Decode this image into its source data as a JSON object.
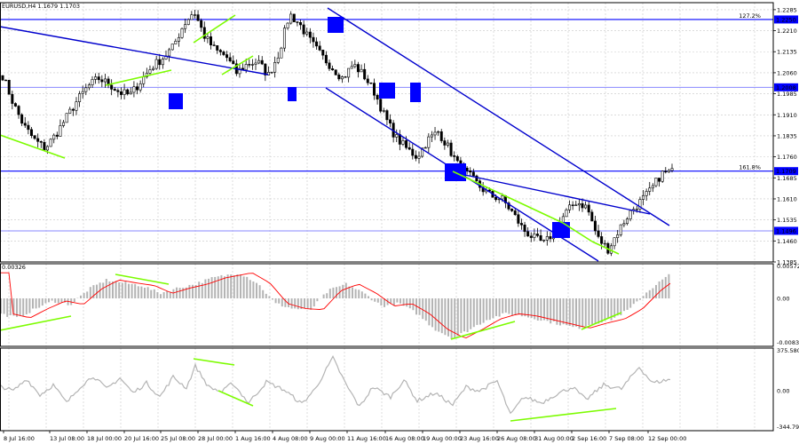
{
  "header": {
    "text": "EURUSD,H4  1.1679 1.1703"
  },
  "colors": {
    "candle": "#000000",
    "level_line": "#0000ff",
    "level_line_thin": "#8a8aff",
    "channel": "#0000cd",
    "marker": "#0000ff",
    "divergence": "#7cfc00",
    "macd_hist": "#b4b4b4",
    "macd_signal": "#ff0000",
    "cci": "#b4b4b4",
    "grid": "#c8c8c8",
    "label_box": "#0000ff",
    "label_text": "#ffffff"
  },
  "x_labels": [
    "8 Jul 16:00",
    "13 Jul 08:00",
    "18 Jul 00:00",
    "20 Jul 16:00",
    "25 Jul 08:00",
    "28 Jul 00:00",
    "1 Aug 16:00",
    "4 Aug 08:00",
    "9 Aug 00:00",
    "11 Aug 16:00",
    "16 Aug 08:00",
    "19 Aug 00:00",
    "23 Aug 16:00",
    "26 Aug 08:00",
    "31 Aug 00:00",
    "2 Sep 16:00",
    "7 Sep 08:00",
    "12 Sep 00:00"
  ],
  "price_ticks": [
    "1.2285",
    "1.2210",
    "1.2135",
    "1.2060",
    "1.1985",
    "1.1910",
    "1.1835",
    "1.1760",
    "1.1685",
    "1.1610",
    "1.1535",
    "1.1460",
    "1.1385"
  ],
  "price_levels": [
    {
      "price": 1.225,
      "label": "1.2250",
      "fib": "127.2%"
    },
    {
      "price": 1.2008,
      "label": "1.2008",
      "fib": ""
    },
    {
      "price": 1.1709,
      "label": "1.1709",
      "fib": "161.8%"
    },
    {
      "price": 1.1496,
      "label": "1.1496",
      "fib": ""
    }
  ],
  "macd": {
    "top_label": "0.00326",
    "right_ticks": [
      "0.00572",
      "0.00",
      "-0.00831"
    ]
  },
  "cci": {
    "right_ticks": [
      "375.5808",
      "0.00",
      "-344.79"
    ]
  },
  "chart_data": [
    {
      "type": "candlestick",
      "title": "EURUSD,H4  1.1679 1.1703",
      "ylim": [
        1.1385,
        1.231
      ],
      "x_labels": [
        "8 Jul 16:00",
        "13 Jul 08:00",
        "18 Jul 00:00",
        "20 Jul 16:00",
        "25 Jul 08:00",
        "28 Jul 00:00",
        "1 Aug 16:00",
        "4 Aug 08:00",
        "9 Aug 00:00",
        "11 Aug 16:00",
        "16 Aug 08:00",
        "19 Aug 00:00",
        "23 Aug 16:00",
        "26 Aug 08:00",
        "31 Aug 00:00",
        "2 Sep 16:00",
        "7 Sep 08:00",
        "12 Sep 00:00"
      ],
      "close_path": [
        1.205,
        1.195,
        1.187,
        1.182,
        1.179,
        1.184,
        1.19,
        1.196,
        1.201,
        1.204,
        1.202,
        1.199,
        1.198,
        1.203,
        1.208,
        1.211,
        1.215,
        1.223,
        1.228,
        1.219,
        1.214,
        1.212,
        1.206,
        1.209,
        1.21,
        1.205,
        1.213,
        1.227,
        1.223,
        1.217,
        1.212,
        1.208,
        1.204,
        1.209,
        1.205,
        1.199,
        1.19,
        1.183,
        1.179,
        1.176,
        1.182,
        1.185,
        1.179,
        1.172,
        1.169,
        1.165,
        1.162,
        1.161,
        1.156,
        1.15,
        1.147,
        1.145,
        1.15,
        1.156,
        1.16,
        1.158,
        1.147,
        1.143,
        1.15,
        1.156,
        1.16,
        1.164,
        1.17,
        1.1706
      ],
      "levels": [
        1.225,
        1.2008,
        1.1709,
        1.1496
      ],
      "fib_labels": [
        "127.2%",
        "161.8%"
      ],
      "grid": true
    },
    {
      "type": "bar",
      "title": "MACD",
      "ylim": [
        -0.00831,
        0.00572
      ],
      "levels": [
        0.00326
      ],
      "grid": true
    },
    {
      "type": "line",
      "title": "CCI",
      "ylim": [
        -344.79,
        375.5808
      ],
      "grid": true
    }
  ]
}
